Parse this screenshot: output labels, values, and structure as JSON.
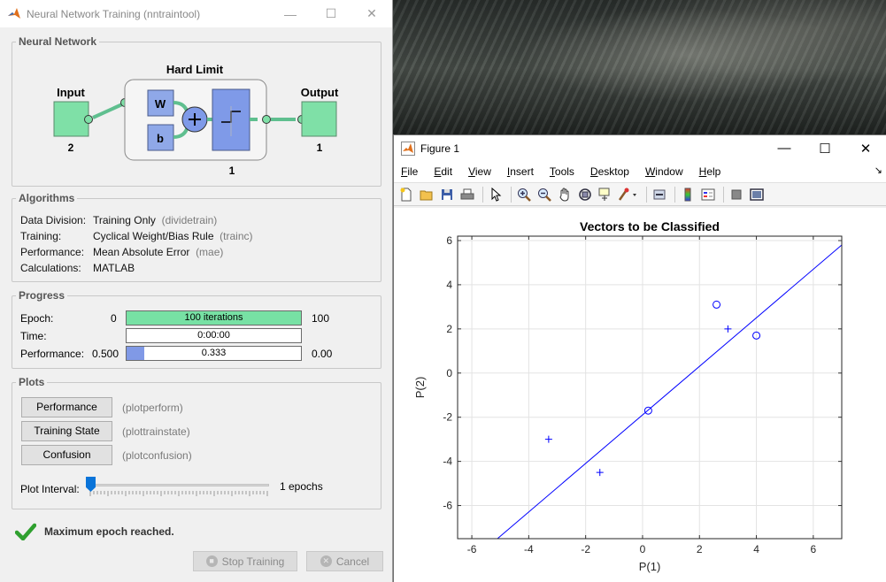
{
  "nntraintool": {
    "title": "Neural Network Training (nntraintool)",
    "network": {
      "section_title": "Neural Network",
      "input_label": "Input",
      "input_size": "2",
      "layer_title": "Hard Limit",
      "weight_label": "W",
      "bias_label": "b",
      "layer_size": "1",
      "output_label": "Output",
      "output_size": "1"
    },
    "algorithms": {
      "section_title": "Algorithms",
      "rows": [
        {
          "label": "Data Division:",
          "value": "Training Only",
          "fn": "(dividetrain)"
        },
        {
          "label": "Training:",
          "value": "Cyclical Weight/Bias Rule",
          "fn": "(trainc)"
        },
        {
          "label": "Performance:",
          "value": "Mean Absolute Error",
          "fn": "(mae)"
        },
        {
          "label": "Calculations:",
          "value": "MATLAB",
          "fn": ""
        }
      ]
    },
    "progress": {
      "section_title": "Progress",
      "epoch": {
        "label": "Epoch:",
        "start": "0",
        "bar_text": "100 iterations",
        "end": "100",
        "fill": 1.0,
        "color": "#77e1a4"
      },
      "time": {
        "label": "Time:",
        "bar_text": "0:00:00"
      },
      "performance": {
        "label": "Performance:",
        "start": "0.500",
        "bar_text": "0.333",
        "end": "0.00",
        "fill": 0.1,
        "color": "#8099e6"
      }
    },
    "plots": {
      "section_title": "Plots",
      "buttons": [
        {
          "label": "Performance",
          "fn": "(plotperform)"
        },
        {
          "label": "Training State",
          "fn": "(plottrainstate)"
        },
        {
          "label": "Confusion",
          "fn": "(plotconfusion)"
        }
      ],
      "interval_label": "Plot Interval:",
      "interval_value": "1 epochs"
    },
    "status": "Maximum epoch reached.",
    "stop_button": "Stop Training",
    "cancel_button": "Cancel"
  },
  "figure": {
    "title": "Figure 1",
    "menu": [
      "File",
      "Edit",
      "View",
      "Insert",
      "Tools",
      "Desktop",
      "Window",
      "Help"
    ],
    "toolbar_icons": [
      "new-figure-icon",
      "open-file-icon",
      "save-icon",
      "print-icon",
      "edit-plot-icon",
      "zoom-in-icon",
      "zoom-out-icon",
      "pan-icon",
      "rotate-3d-icon",
      "data-cursor-icon",
      "brush-icon",
      "link-plot-icon",
      "insert-colorbar-icon",
      "insert-legend-icon",
      "hide-plot-tools-icon",
      "show-plot-tools-icon"
    ]
  },
  "chart_data": {
    "type": "scatter",
    "title": "Vectors to be Classified",
    "xlabel": "P(1)",
    "ylabel": "P(2)",
    "xlim": [
      -6.5,
      7
    ],
    "ylim": [
      -7.5,
      6.2
    ],
    "xticks": [
      -6,
      -4,
      -2,
      0,
      2,
      4,
      6
    ],
    "yticks": [
      -6,
      -4,
      -2,
      0,
      2,
      4,
      6
    ],
    "grid": true,
    "color": "#0000ff",
    "series": [
      {
        "marker": "o",
        "points": [
          [
            0.2,
            -1.7
          ],
          [
            2.6,
            3.1
          ],
          [
            4.0,
            1.7
          ]
        ]
      },
      {
        "marker": "+",
        "points": [
          [
            -3.3,
            -3.0
          ],
          [
            -1.5,
            -4.5
          ],
          [
            3.0,
            2.0
          ]
        ]
      }
    ],
    "boundary_line": [
      [
        -5.1,
        -7.5
      ],
      [
        7.0,
        5.8
      ]
    ]
  }
}
